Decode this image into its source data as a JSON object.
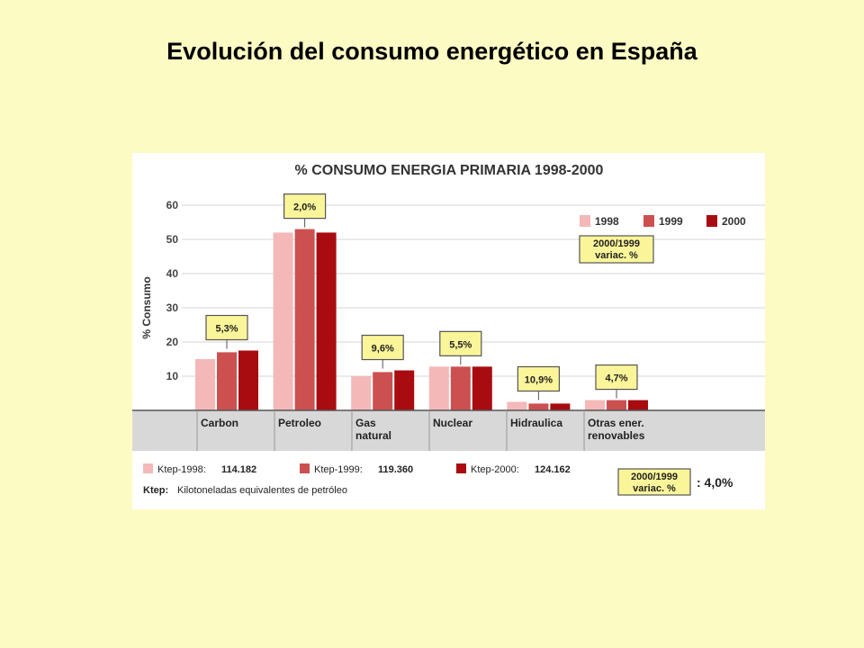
{
  "slide": {
    "title": "Evolución del consumo energético en España"
  },
  "chart_data": {
    "type": "bar",
    "title": "% CONSUMO ENERGIA PRIMARIA 1998-2000",
    "ylabel": "% Consumo",
    "ylim": [
      0,
      60
    ],
    "yticks": [
      10,
      20,
      30,
      40,
      50,
      60
    ],
    "grid": true,
    "categories": [
      {
        "line1": "Carbon",
        "line2": ""
      },
      {
        "line1": "Petroleo",
        "line2": ""
      },
      {
        "line1": "Gas",
        "line2": "natural"
      },
      {
        "line1": "Nuclear",
        "line2": ""
      },
      {
        "line1": "Hidraulica",
        "line2": ""
      },
      {
        "line1": "Otras ener.",
        "line2": "renovables"
      }
    ],
    "series": [
      {
        "name": "1998",
        "color": "#f4b8b8",
        "values": [
          15,
          52,
          10,
          12.8,
          2.5,
          3
        ]
      },
      {
        "name": "1999",
        "color": "#cc5050",
        "values": [
          17,
          53,
          11.2,
          12.8,
          2,
          3
        ]
      },
      {
        "name": "2000",
        "color": "#a80c10",
        "values": [
          17.5,
          52,
          11.7,
          12.8,
          2,
          3
        ]
      }
    ],
    "variation_labels": [
      "5,3%",
      "2,0%",
      "9,6%",
      "5,5%",
      "10,9%",
      "4,7%"
    ],
    "legend_position": "top-right",
    "variation_legend": {
      "line1": "2000/1999",
      "line2": "variac. %"
    },
    "footer": {
      "totals": [
        {
          "label": "Ktep-1998:",
          "value": "114.182"
        },
        {
          "label": "Ktep-1999:",
          "value": "119.360"
        },
        {
          "label": "Ktep-2000:",
          "value": "124.162"
        }
      ],
      "note_label": "Ktep:",
      "note_text": "Kilotoneladas equivalentes de petróleo",
      "total_variation": ": 4,0%"
    }
  }
}
